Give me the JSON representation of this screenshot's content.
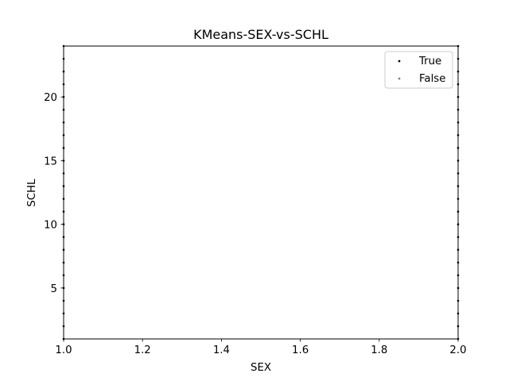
{
  "chart_data": {
    "type": "scatter",
    "title": "KMeans-SEX-vs-SCHL",
    "xlabel": "SEX",
    "ylabel": "SCHL",
    "xlim": [
      1.0,
      2.0
    ],
    "ylim": [
      1.0,
      24.0
    ],
    "xticks": [
      1.0,
      1.2,
      1.4,
      1.6,
      1.8,
      2.0
    ],
    "xtick_labels": [
      "1.0",
      "1.2",
      "1.4",
      "1.6",
      "1.8",
      "2.0"
    ],
    "yticks": [
      5,
      10,
      15,
      20
    ],
    "ytick_labels": [
      "5",
      "10",
      "15",
      "20"
    ],
    "grid": false,
    "legend_position": "top-right",
    "series": [
      {
        "name": "True",
        "color": "#000000",
        "points": [
          {
            "x": 1.0,
            "y": 1
          },
          {
            "x": 1.0,
            "y": 2
          },
          {
            "x": 1.0,
            "y": 3
          },
          {
            "x": 1.0,
            "y": 4
          },
          {
            "x": 1.0,
            "y": 5
          },
          {
            "x": 1.0,
            "y": 6
          },
          {
            "x": 1.0,
            "y": 7
          },
          {
            "x": 1.0,
            "y": 8
          },
          {
            "x": 1.0,
            "y": 9
          },
          {
            "x": 1.0,
            "y": 10
          },
          {
            "x": 1.0,
            "y": 11
          },
          {
            "x": 1.0,
            "y": 12
          },
          {
            "x": 1.0,
            "y": 13
          },
          {
            "x": 1.0,
            "y": 14
          },
          {
            "x": 1.0,
            "y": 15
          },
          {
            "x": 1.0,
            "y": 16
          },
          {
            "x": 1.0,
            "y": 17
          },
          {
            "x": 1.0,
            "y": 18
          },
          {
            "x": 1.0,
            "y": 19
          },
          {
            "x": 1.0,
            "y": 20
          },
          {
            "x": 1.0,
            "y": 21
          },
          {
            "x": 1.0,
            "y": 22
          },
          {
            "x": 1.0,
            "y": 23
          },
          {
            "x": 1.0,
            "y": 24
          },
          {
            "x": 2.0,
            "y": 1
          },
          {
            "x": 2.0,
            "y": 2
          },
          {
            "x": 2.0,
            "y": 3
          },
          {
            "x": 2.0,
            "y": 4
          },
          {
            "x": 2.0,
            "y": 5
          },
          {
            "x": 2.0,
            "y": 6
          },
          {
            "x": 2.0,
            "y": 7
          },
          {
            "x": 2.0,
            "y": 8
          },
          {
            "x": 2.0,
            "y": 9
          },
          {
            "x": 2.0,
            "y": 10
          },
          {
            "x": 2.0,
            "y": 11
          },
          {
            "x": 2.0,
            "y": 12
          },
          {
            "x": 2.0,
            "y": 13
          },
          {
            "x": 2.0,
            "y": 14
          },
          {
            "x": 2.0,
            "y": 15
          },
          {
            "x": 2.0,
            "y": 16
          },
          {
            "x": 2.0,
            "y": 17
          },
          {
            "x": 2.0,
            "y": 18
          },
          {
            "x": 2.0,
            "y": 19
          },
          {
            "x": 2.0,
            "y": 20
          },
          {
            "x": 2.0,
            "y": 21
          },
          {
            "x": 2.0,
            "y": 22
          },
          {
            "x": 2.0,
            "y": 23
          },
          {
            "x": 2.0,
            "y": 24
          }
        ]
      },
      {
        "name": "False",
        "color": "#808080",
        "points": []
      }
    ]
  }
}
